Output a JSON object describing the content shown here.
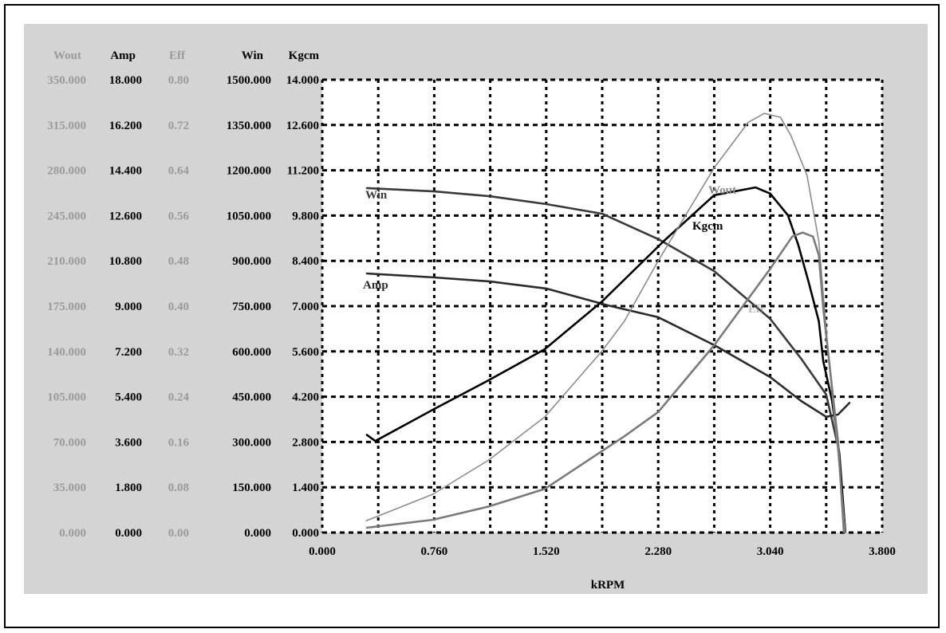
{
  "chart_data": {
    "type": "line",
    "xlabel": "kRPM",
    "xlim": [
      0,
      3.8
    ],
    "x_ticks": [
      "0.000",
      "0.760",
      "1.520",
      "2.280",
      "3.040",
      "3.800"
    ],
    "grid": true,
    "grid_style": "dotted",
    "axes": [
      {
        "name": "Wout",
        "color": "#9a9a9a",
        "range": [
          0,
          350
        ],
        "ticks": [
          "350.000",
          "315.000",
          "280.000",
          "245.000",
          "210.000",
          "175.000",
          "140.000",
          "105.000",
          "70.000",
          "35.000",
          "0.000"
        ]
      },
      {
        "name": "Amp",
        "color": "#000000",
        "range": [
          0,
          18
        ],
        "ticks": [
          "18.000",
          "16.200",
          "14.400",
          "12.600",
          "10.800",
          "9.000",
          "7.200",
          "5.400",
          "3.600",
          "1.800",
          "0.000"
        ]
      },
      {
        "name": "Eff",
        "color": "#9a9a9a",
        "range": [
          0,
          0.8
        ],
        "ticks": [
          "0.80",
          "0.72",
          "0.64",
          "0.56",
          "0.48",
          "0.40",
          "0.32",
          "0.24",
          "0.16",
          "0.08",
          "0.00"
        ]
      },
      {
        "name": "Win",
        "color": "#000000",
        "range": [
          0,
          1500
        ],
        "ticks": [
          "1500.000",
          "1350.000",
          "1200.000",
          "1050.000",
          "900.000",
          "750.000",
          "600.000",
          "450.000",
          "300.000",
          "150.000",
          "0.000"
        ]
      },
      {
        "name": "Kgcm",
        "color": "#000000",
        "range": [
          0,
          14
        ],
        "ticks": [
          "14.000",
          "12.600",
          "11.200",
          "9.800",
          "8.400",
          "7.000",
          "5.600",
          "4.200",
          "2.800",
          "1.400",
          "0.000"
        ]
      }
    ],
    "series": [
      {
        "name": "Win",
        "axis": "Win",
        "color": "#3a3a3a",
        "label": "Win",
        "x": [
          0.3,
          0.76,
          1.14,
          1.52,
          1.9,
          2.28,
          2.66,
          3.04,
          3.25,
          3.42,
          3.5,
          3.55
        ],
        "y": [
          1141,
          1130,
          1114,
          1088,
          1056,
          972,
          866,
          708,
          576,
          457,
          285,
          0
        ]
      },
      {
        "name": "Amp",
        "axis": "Amp",
        "color": "#2a2a2a",
        "label": "Amp",
        "x": [
          0.3,
          0.76,
          1.14,
          1.52,
          1.94,
          2.28,
          2.66,
          3.04,
          3.25,
          3.42,
          3.5,
          3.58
        ],
        "y": [
          10.3,
          10.14,
          9.98,
          9.7,
          9.03,
          8.56,
          7.45,
          6.18,
          5.23,
          4.6,
          4.69,
          5.17
        ]
      },
      {
        "name": "Kgcm",
        "axis": "Kgcm",
        "color": "#000000",
        "label": "Kgcm",
        "x": [
          0.3,
          0.36,
          0.76,
          1.13,
          1.51,
          1.9,
          2.32,
          2.66,
          2.94,
          3.04,
          3.16,
          3.23,
          3.3,
          3.37,
          3.4,
          3.46,
          3.51,
          3.55
        ],
        "y": [
          3.03,
          2.83,
          3.82,
          4.71,
          5.67,
          7.15,
          9.02,
          10.43,
          10.67,
          10.48,
          9.81,
          8.9,
          7.76,
          6.53,
          5.3,
          4.07,
          2.42,
          0
        ]
      },
      {
        "name": "Wout",
        "axis": "Wout",
        "color": "#8c8c8c",
        "label": "Wout",
        "x": [
          0.3,
          0.75,
          1.13,
          1.51,
          1.9,
          2.05,
          2.28,
          2.66,
          2.89,
          3.0,
          3.11,
          3.18,
          3.29,
          3.37,
          3.43,
          3.48,
          3.51,
          3.55
        ],
        "y": [
          9.2,
          29.6,
          56.1,
          89.4,
          140.5,
          163.3,
          210,
          282,
          317,
          324,
          321,
          307,
          276,
          225,
          144,
          83,
          52,
          0
        ]
      },
      {
        "name": "Eff",
        "axis": "Eff",
        "color": "#7a7a7a",
        "label": "Eff",
        "x": [
          0.3,
          0.75,
          1.13,
          1.51,
          2.05,
          2.28,
          2.66,
          3.04,
          3.19,
          3.26,
          3.33,
          3.37,
          3.4,
          3.46,
          3.5,
          3.54
        ],
        "y": [
          0.0085,
          0.0225,
          0.046,
          0.077,
          0.17,
          0.213,
          0.331,
          0.466,
          0.523,
          0.53,
          0.523,
          0.49,
          0.396,
          0.255,
          0.162,
          0
        ]
      }
    ]
  }
}
